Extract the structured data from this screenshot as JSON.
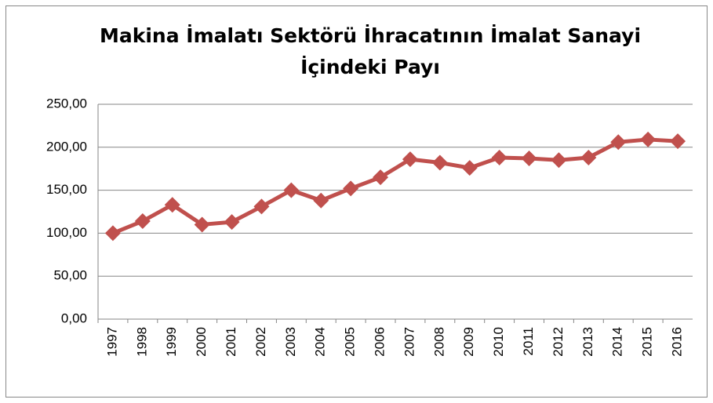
{
  "chart_data": {
    "type": "line",
    "title": [
      "Makina İmalatı Sektörü İhracatının İmalat Sanayi",
      "İçindeki Payı"
    ],
    "categories": [
      "1997",
      "1998",
      "1999",
      "2000",
      "2001",
      "2002",
      "2003",
      "2004",
      "2005",
      "2006",
      "2007",
      "2008",
      "2009",
      "2010",
      "2011",
      "2012",
      "2013",
      "2014",
      "2015",
      "2016"
    ],
    "series": [
      {
        "color": "#c0504d",
        "values": [
          100,
          114,
          133,
          110,
          113,
          131,
          150,
          138,
          152,
          165,
          186,
          182,
          176,
          188,
          187,
          185,
          188,
          206,
          209,
          207
        ]
      }
    ],
    "ylim": [
      0,
      250
    ],
    "yticks": [
      {
        "value": 0,
        "label": "0,00"
      },
      {
        "value": 50,
        "label": "50,00"
      },
      {
        "value": 100,
        "label": "100,00"
      },
      {
        "value": 150,
        "label": "150,00"
      },
      {
        "value": 200,
        "label": "200,00"
      },
      {
        "value": 250,
        "label": "250,00"
      }
    ],
    "grid": true
  }
}
